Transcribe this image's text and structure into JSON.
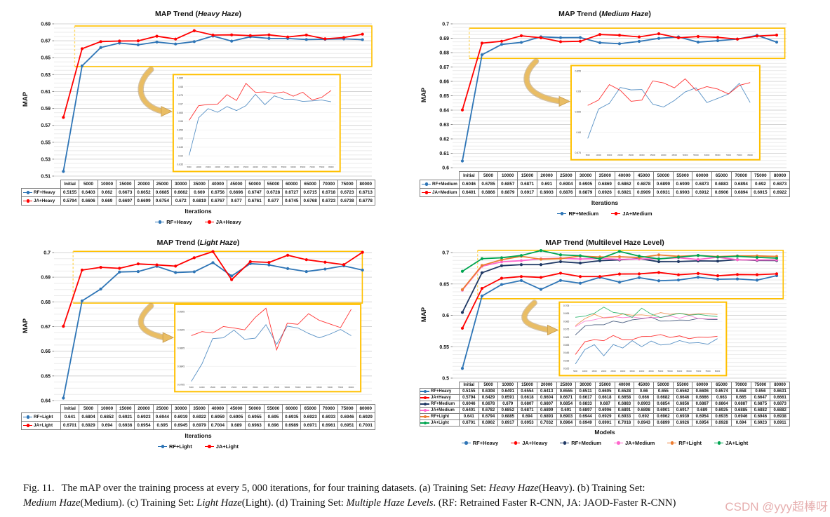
{
  "figure": {
    "caption": {
      "line1": [
        {
          "t": "Fig. 11.",
          "fig": true
        },
        {
          "t": "The mAP over the training process at every 5, 000 iterations, for four training datasets. (a) Training Set: "
        },
        {
          "t": "Heavy Haze",
          "i": true
        },
        {
          "t": "(Heavy). (b) Training Set:"
        }
      ],
      "line2": [
        {
          "t": "Medium Haze",
          "i": true
        },
        {
          "t": "(Medium). (c) Training Set: "
        },
        {
          "t": "Light Haze",
          "i": true
        },
        {
          "t": "(Light). (d) Training Set: "
        },
        {
          "t": "Multiple Haze Levels",
          "i": true
        },
        {
          "t": ". (RF: Retrained Faster R-CNN, JA: JAOD-Faster R-CNN)"
        }
      ]
    },
    "watermark": "CSDN @yyy超棒呀"
  },
  "colors": {
    "rf_heavy": "#2E75B6",
    "ja_heavy": "#FF0000",
    "rf_medium": "#1F3864",
    "ja_medium": "#FF66CC",
    "rf_light": "#ED7D31",
    "ja_light": "#00A550",
    "highlight_gold": "#FFC000",
    "arrow_gold": "#E3B258",
    "grid_major": "#D4D4D4",
    "grid_minor": "#EBEBEB"
  },
  "chart_data": [
    {
      "type": "line",
      "title_prefix": "MAP Trend (",
      "title_italic": "Heavy Haze",
      "title_suffix": ")",
      "ylabel": "MAP",
      "xlabel": "Iterations",
      "ylim": [
        0.51,
        0.69
      ],
      "ytick_step": 0.02,
      "minor_per_major": 4,
      "grid": true,
      "legend_position": "bottom",
      "categories": [
        "Initial",
        "5000",
        "10000",
        "15000",
        "20000",
        "25000",
        "30000",
        "35000",
        "40000",
        "45000",
        "50000",
        "55000",
        "60000",
        "65000",
        "70000",
        "75000",
        "80000"
      ],
      "series": [
        {
          "name": "RF+Heavy",
          "color": "#2E75B6",
          "values": [
            0.5155,
            0.6403,
            0.662,
            0.6673,
            0.6652,
            0.6685,
            0.6662,
            0.669,
            0.6756,
            0.6696,
            0.6747,
            0.6728,
            0.6727,
            0.6715,
            0.6718,
            0.6723,
            0.6713
          ]
        },
        {
          "name": "JA+Heavy",
          "color": "#FF0000",
          "values": [
            0.5794,
            0.6606,
            0.669,
            0.6697,
            0.6699,
            0.6754,
            0.672,
            0.6819,
            0.6767,
            0.677,
            0.6761,
            0.677,
            0.6745,
            0.6768,
            0.6723,
            0.6738,
            0.6778
          ]
        }
      ],
      "highlight": {
        "x0": 0.065,
        "x1": 1.0,
        "y0": 0.6395,
        "y1": 0.6875
      },
      "inset": {
        "x0": 0.375,
        "y0": 0.333,
        "x1": 0.9,
        "y1": 0.97,
        "ylim": [
          0.635,
          0.685
        ],
        "step": 0.005
      },
      "arrow": {
        "sx": 0.305,
        "sy": 0.3
      }
    },
    {
      "type": "line",
      "title_prefix": "MAP Trend (",
      "title_italic": "Medium Haze",
      "title_suffix": ")",
      "ylabel": "MAP",
      "xlabel": "Iterations",
      "ylim": [
        0.6,
        0.7
      ],
      "ytick_step": 0.01,
      "minor_per_major": 4,
      "grid": true,
      "legend_position": "bottom",
      "categories": [
        "Initial",
        "5000",
        "10000",
        "15000",
        "20000",
        "25000",
        "30000",
        "35000",
        "40000",
        "45000",
        "50000",
        "55000",
        "60000",
        "65000",
        "70000",
        "75000",
        "80000"
      ],
      "series": [
        {
          "name": "RF+Medium",
          "color": "#2E75B6",
          "values": [
            0.6046,
            0.6785,
            0.6857,
            0.6871,
            0.691,
            0.6904,
            0.6905,
            0.6869,
            0.6862,
            0.6878,
            0.6899,
            0.6909,
            0.6873,
            0.6883,
            0.6894,
            0.692,
            0.6873
          ]
        },
        {
          "name": "JA+Medium",
          "color": "#FF0000",
          "values": [
            0.6401,
            0.6866,
            0.6879,
            0.6917,
            0.6903,
            0.6876,
            0.6879,
            0.6926,
            0.6921,
            0.6909,
            0.6931,
            0.6903,
            0.6912,
            0.6906,
            0.6894,
            0.6915,
            0.6922
          ]
        }
      ],
      "highlight": {
        "x0": 0.05,
        "x1": 0.995,
        "y0": 0.676,
        "y1": 0.697
      },
      "inset": {
        "x0": 0.355,
        "y0": 0.29,
        "x1": 0.92,
        "y1": 0.945,
        "ylim": [
          0.675,
          0.6955
        ],
        "step": 0.005
      },
      "arrow": {
        "sx": 0.25,
        "sy": 0.26
      }
    },
    {
      "type": "line",
      "title_prefix": "MAP Trend (",
      "title_italic": "Light Haze",
      "title_suffix": ")",
      "ylabel": "MAP",
      "xlabel": "Iterations",
      "ylim": [
        0.64,
        0.7
      ],
      "ytick_step": 0.01,
      "minor_per_major": 4,
      "grid": true,
      "legend_position": "bottom",
      "categories": [
        "Initial",
        "5000",
        "10000",
        "15000",
        "20000",
        "25000",
        "30000",
        "35000",
        "40000",
        "45000",
        "50000",
        "55000",
        "60000",
        "65000",
        "70000",
        "75000",
        "80000"
      ],
      "series": [
        {
          "name": "RF+Light",
          "color": "#2E75B6",
          "values": [
            0.641,
            0.6804,
            0.6852,
            0.6921,
            0.6923,
            0.6944,
            0.6919,
            0.6922,
            0.6959,
            0.6905,
            0.6955,
            0.695,
            0.6935,
            0.6923,
            0.6933,
            0.6946,
            0.6929
          ]
        },
        {
          "name": "JA+Light",
          "color": "#FF0000",
          "values": [
            0.6701,
            0.6929,
            0.694,
            0.6936,
            0.6954,
            0.695,
            0.6945,
            0.6979,
            0.7004,
            0.689,
            0.6963,
            0.696,
            0.6989,
            0.6971,
            0.6961,
            0.6951,
            0.7001
          ]
        }
      ],
      "highlight": {
        "x0": 0.06,
        "x1": 0.97,
        "y0": 0.6795,
        "y1": 0.7005
      },
      "inset": {
        "x0": 0.38,
        "y0": 0.35,
        "x1": 0.965,
        "y1": 0.94,
        "ylim": [
          0.6795,
          0.7005
        ],
        "step": 0.005
      },
      "arrow": {
        "sx": 0.305,
        "sy": 0.36
      }
    },
    {
      "type": "line",
      "title_prefix": "MAP Trend (Multilevel Haze Level)",
      "title_italic": "",
      "title_suffix": "",
      "ylabel": "MAP",
      "xlabel": "Models",
      "ylim": [
        0.5,
        0.7
      ],
      "ytick_step": 0.05,
      "minor_per_major": 8,
      "grid": true,
      "legend_position": "bottom",
      "categories": [
        "Initial",
        "5000",
        "10000",
        "15000",
        "20000",
        "25000",
        "30000",
        "35000",
        "40000",
        "45000",
        "50000",
        "55000",
        "60000",
        "65000",
        "70000",
        "75000",
        "80000"
      ],
      "series": [
        {
          "name": "RF+Heavy",
          "color": "#2E75B6",
          "values": [
            0.5155,
            0.6308,
            0.6491,
            0.6554,
            0.6413,
            0.6555,
            0.6511,
            0.6605,
            0.6528,
            0.66,
            0.655,
            0.6562,
            0.6606,
            0.6574,
            0.658,
            0.656,
            0.6631
          ]
        },
        {
          "name": "JA+Heavy",
          "color": "#FF0000",
          "values": [
            0.5794,
            0.6429,
            0.6591,
            0.6618,
            0.6604,
            0.6671,
            0.6617,
            0.6618,
            0.6658,
            0.666,
            0.6682,
            0.6646,
            0.6666,
            0.663,
            0.665,
            0.6647,
            0.6661
          ]
        },
        {
          "name": "RF+Medium",
          "color": "#1F3864",
          "values": [
            0.6046,
            0.6678,
            0.679,
            0.6807,
            0.6807,
            0.6854,
            0.6833,
            0.687,
            0.6883,
            0.6903,
            0.6854,
            0.6856,
            0.6867,
            0.6864,
            0.6887,
            0.6875,
            0.6873
          ]
        },
        {
          "name": "JA+Medium",
          "color": "#FF66CC",
          "values": [
            0.6401,
            0.6782,
            0.6852,
            0.6871,
            0.6899,
            0.691,
            0.6897,
            0.6906,
            0.6891,
            0.6898,
            0.6901,
            0.6917,
            0.689,
            0.6925,
            0.6885,
            0.6882,
            0.6882
          ]
        },
        {
          "name": "RF+Light",
          "color": "#ED7D31",
          "values": [
            0.641,
            0.6794,
            0.6885,
            0.694,
            0.6893,
            0.6903,
            0.6944,
            0.6929,
            0.6933,
            0.692,
            0.6962,
            0.6939,
            0.6954,
            0.6935,
            0.6946,
            0.6946,
            0.6938
          ]
        },
        {
          "name": "JA+Light",
          "color": "#00A550",
          "values": [
            0.6701,
            0.6902,
            0.6917,
            0.6953,
            0.7032,
            0.6964,
            0.6949,
            0.6901,
            0.7018,
            0.6943,
            0.6899,
            0.6926,
            0.6954,
            0.6928,
            0.694,
            0.6923,
            0.6911
          ]
        }
      ],
      "highlight": {
        "x0": 0.075,
        "x1": 0.99,
        "y0": 0.6265,
        "y1": 0.7035
      },
      "inset": {
        "x0": 0.32,
        "y0": 0.395,
        "x1": 0.82,
        "y1": 0.98,
        "ylim": [
          0.625,
          0.705
        ],
        "step": 0.01
      },
      "arrow": {
        "sx": 0.245,
        "sy": 0.4
      }
    }
  ]
}
